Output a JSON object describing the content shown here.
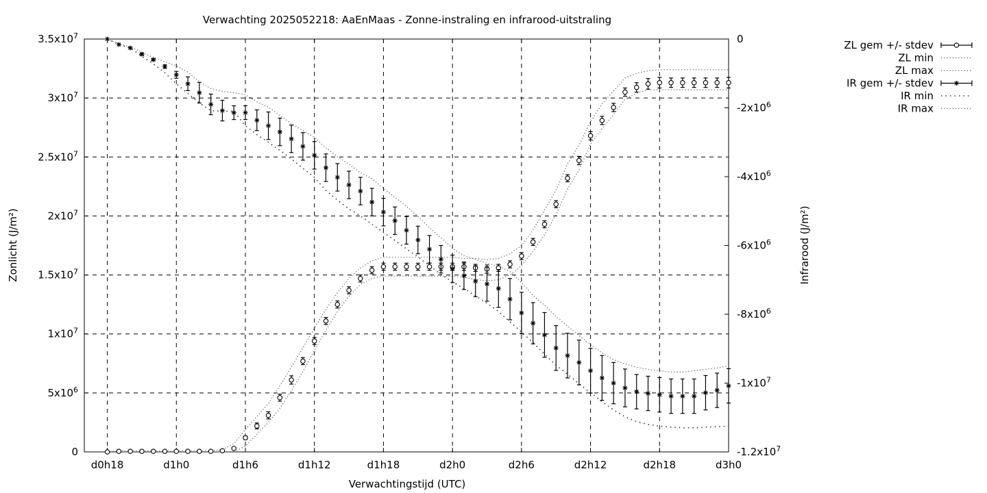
{
  "chart_data": {
    "type": "line",
    "title": "Verwachting 2025052218: AaEnMaas - Zonne-instraling en infrarood-uitstraling",
    "xlabel": "Verwachtingstijd (UTC)",
    "ylabel": "Zonlicht (J/m²)",
    "y2label": "Infrarood (J/m²)",
    "x_unit": "hours since d0h18",
    "xlim": [
      -2,
      54
    ],
    "ylim": [
      0,
      35000000
    ],
    "y2lim": [
      -12000000,
      0
    ],
    "grid": true,
    "legend_position": "outside-right",
    "x_ticks": [
      {
        "x": 0,
        "label": "d0h18"
      },
      {
        "x": 6,
        "label": "d1h0"
      },
      {
        "x": 12,
        "label": "d1h6"
      },
      {
        "x": 18,
        "label": "d1h12"
      },
      {
        "x": 24,
        "label": "d1h18"
      },
      {
        "x": 30,
        "label": "d2h0"
      },
      {
        "x": 36,
        "label": "d2h6"
      },
      {
        "x": 42,
        "label": "d2h12"
      },
      {
        "x": 48,
        "label": "d2h18"
      },
      {
        "x": 54,
        "label": "d3h0"
      }
    ],
    "y_ticks": [
      {
        "v": 0,
        "label": "0"
      },
      {
        "v": 5000000,
        "label": "5x10",
        "exp": "6"
      },
      {
        "v": 10000000,
        "label": "1x10",
        "exp": "7"
      },
      {
        "v": 15000000,
        "label": "1.5x10",
        "exp": "7"
      },
      {
        "v": 20000000,
        "label": "2x10",
        "exp": "7"
      },
      {
        "v": 25000000,
        "label": "2.5x10",
        "exp": "7"
      },
      {
        "v": 30000000,
        "label": "3x10",
        "exp": "7"
      },
      {
        "v": 35000000,
        "label": "3.5x10",
        "exp": "7"
      }
    ],
    "y2_ticks": [
      {
        "v": 0,
        "label": "0"
      },
      {
        "v": -2000000,
        "label": "-2x10",
        "exp": "6"
      },
      {
        "v": -4000000,
        "label": "-4x10",
        "exp": "6"
      },
      {
        "v": -6000000,
        "label": "-6x10",
        "exp": "6"
      },
      {
        "v": -8000000,
        "label": "-8x10",
        "exp": "6"
      },
      {
        "v": -10000000,
        "label": "-1x10",
        "exp": "7"
      },
      {
        "v": -12000000,
        "label": "-1.2x10",
        "exp": "7"
      }
    ],
    "x": [
      0,
      1,
      2,
      3,
      4,
      5,
      6,
      7,
      8,
      9,
      10,
      11,
      12,
      13,
      14,
      15,
      16,
      17,
      18,
      19,
      20,
      21,
      22,
      23,
      24,
      25,
      26,
      27,
      28,
      29,
      30,
      31,
      32,
      33,
      34,
      35,
      36,
      37,
      38,
      39,
      40,
      41,
      42,
      43,
      44,
      45,
      46,
      47,
      48,
      49,
      50,
      51,
      52,
      53,
      54
    ],
    "series": [
      {
        "name": "ZL gem +/- stdev",
        "axis": "y",
        "marker": "circle",
        "values": [
          0,
          50000,
          50000,
          50000,
          50000,
          50000,
          50000,
          50000,
          50000,
          50000,
          100000,
          300000,
          1200000,
          2200000,
          3100000,
          4600000,
          6100000,
          7700000,
          9400000,
          11100000,
          12500000,
          13700000,
          14700000,
          15400000,
          15700000,
          15700000,
          15700000,
          15700000,
          15700000,
          15700000,
          15700000,
          15700000,
          15600000,
          15500000,
          15600000,
          15900000,
          16600000,
          17800000,
          19300000,
          21000000,
          23200000,
          24700000,
          26800000,
          28100000,
          29200000,
          30500000,
          30900000,
          31200000,
          31300000,
          31300000,
          31300000,
          31300000,
          31300000,
          31300000,
          31300000
        ],
        "stdev": [
          0,
          0,
          0,
          0,
          0,
          0,
          0,
          0,
          0,
          0,
          0,
          50000,
          150000,
          250000,
          300000,
          300000,
          350000,
          300000,
          300000,
          300000,
          300000,
          300000,
          300000,
          300000,
          300000,
          300000,
          300000,
          300000,
          300000,
          300000,
          300000,
          300000,
          300000,
          350000,
          300000,
          300000,
          300000,
          300000,
          300000,
          300000,
          300000,
          350000,
          350000,
          350000,
          350000,
          350000,
          400000,
          450000,
          450000,
          400000,
          400000,
          400000,
          400000,
          400000,
          450000
        ]
      },
      {
        "name": "ZL min",
        "axis": "y",
        "style": "dotted",
        "values": [
          0,
          0,
          0,
          0,
          0,
          0,
          0,
          0,
          0,
          0,
          0,
          0,
          500000,
          1500000,
          2500000,
          3700000,
          5200000,
          6800000,
          8600000,
          10300000,
          11900000,
          13200000,
          14200000,
          14700000,
          14900000,
          14900000,
          14900000,
          14900000,
          14900000,
          14900000,
          14900000,
          14800000,
          14600000,
          14500000,
          14600000,
          15000000,
          15800000,
          17000000,
          18400000,
          20100000,
          22300000,
          23900000,
          26100000,
          27400000,
          28600000,
          29900000,
          30400000,
          30700000,
          30700000,
          30700000,
          30700000,
          30700000,
          30700000,
          30700000,
          30700000
        ]
      },
      {
        "name": "ZL max",
        "axis": "y",
        "style": "dotted",
        "values": [
          0,
          100000,
          100000,
          100000,
          100000,
          100000,
          100000,
          100000,
          100000,
          100000,
          200000,
          700000,
          1900000,
          3000000,
          4100000,
          5600000,
          7200000,
          8800000,
          10500000,
          12100000,
          13500000,
          14700000,
          15600000,
          16200000,
          16500000,
          16500000,
          16500000,
          16500000,
          16500000,
          16500000,
          16500000,
          16400000,
          16400000,
          16300000,
          16400000,
          16800000,
          17500000,
          18800000,
          20500000,
          22200000,
          24400000,
          26000000,
          28000000,
          29500000,
          30600000,
          31700000,
          32100000,
          32300000,
          32400000,
          32400000,
          32400000,
          32400000,
          32400000,
          32400000,
          32400000
        ]
      },
      {
        "name": "IR gem +/- stdev",
        "axis": "y2",
        "marker": "star",
        "values": [
          0,
          -160000,
          -260000,
          -440000,
          -600000,
          -800000,
          -1040000,
          -1300000,
          -1560000,
          -1900000,
          -2080000,
          -2140000,
          -2140000,
          -2360000,
          -2520000,
          -2700000,
          -2900000,
          -3120000,
          -3380000,
          -3740000,
          -4020000,
          -4240000,
          -4420000,
          -4740000,
          -5030000,
          -5280000,
          -5560000,
          -5840000,
          -6110000,
          -6400000,
          -6680000,
          -6880000,
          -7040000,
          -7120000,
          -7250000,
          -7560000,
          -7960000,
          -8260000,
          -8600000,
          -8980000,
          -9200000,
          -9400000,
          -9640000,
          -9850000,
          -10000000,
          -10140000,
          -10250000,
          -10300000,
          -10340000,
          -10380000,
          -10380000,
          -10380000,
          -10280000,
          -10210000,
          -10080000
        ]
      },
      {
        "name": "IR min",
        "axis": "y2",
        "style": "dotted",
        "values": [
          0,
          -160000,
          -260000,
          -500000,
          -720000,
          -980000,
          -1300000,
          -1580000,
          -1860000,
          -2080000,
          -2100000,
          -2100000,
          -2520000,
          -2780000,
          -3000000,
          -3240000,
          -3480000,
          -3760000,
          -4020000,
          -4400000,
          -4680000,
          -4940000,
          -5140000,
          -5380000,
          -5620000,
          -5850000,
          -6100000,
          -6330000,
          -6590000,
          -6840000,
          -7060000,
          -7260000,
          -7460000,
          -7680000,
          -7920000,
          -8220000,
          -8520000,
          -8820000,
          -9160000,
          -9480000,
          -9740000,
          -10020000,
          -10280000,
          -10540000,
          -10780000,
          -10980000,
          -11120000,
          -11200000,
          -11250000,
          -11280000,
          -11300000,
          -11300000,
          -11280000,
          -11270000,
          -11250000
        ]
      },
      {
        "name": "IR max",
        "axis": "y2",
        "style": "dotted",
        "values": [
          0,
          -140000,
          -230000,
          -380000,
          -540000,
          -660000,
          -780000,
          -960000,
          -1240000,
          -1440000,
          -1520000,
          -1560000,
          -1620000,
          -1820000,
          -1980000,
          -2220000,
          -2460000,
          -2660000,
          -2860000,
          -3160000,
          -3420000,
          -3640000,
          -3880000,
          -4060000,
          -4340000,
          -4600000,
          -4860000,
          -5160000,
          -5480000,
          -5780000,
          -6080000,
          -6300000,
          -6400000,
          -6520000,
          -6600000,
          -6760000,
          -7080000,
          -7450000,
          -7740000,
          -8060000,
          -8340000,
          -8620000,
          -8880000,
          -9120000,
          -9320000,
          -9440000,
          -9540000,
          -9600000,
          -9640000,
          -9680000,
          -9680000,
          -9640000,
          -9600000,
          -9560000,
          -9500000
        ]
      }
    ],
    "ir_stdev": [
      0,
      0,
      0,
      30000,
      30000,
      50000,
      100000,
      200000,
      300000,
      300000,
      300000,
      200000,
      200000,
      300000,
      400000,
      400000,
      400000,
      400000,
      400000,
      400000,
      400000,
      400000,
      400000,
      400000,
      400000,
      400000,
      400000,
      400000,
      400000,
      400000,
      400000,
      400000,
      450000,
      500000,
      550000,
      600000,
      600000,
      600000,
      650000,
      650000,
      650000,
      650000,
      650000,
      650000,
      600000,
      550000,
      500000,
      500000,
      500000,
      500000,
      500000,
      500000,
      500000,
      500000,
      500000
    ]
  }
}
